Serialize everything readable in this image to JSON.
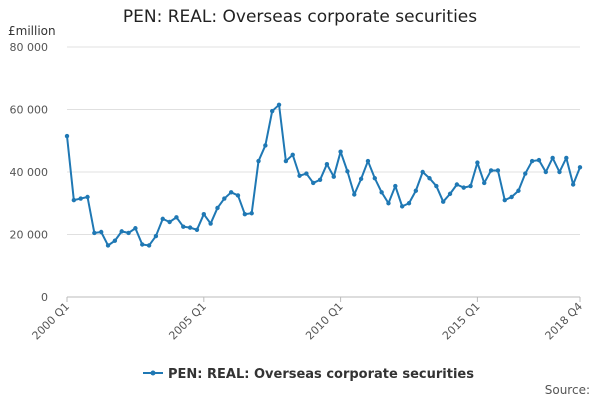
{
  "chart_data": {
    "type": "line",
    "title": "PEN: REAL: Overseas corporate securities",
    "ylabel": "£million",
    "xlabel": "",
    "ylim": [
      0,
      80000
    ],
    "yticks": [
      0,
      20000,
      40000,
      60000,
      80000
    ],
    "ytick_labels": [
      "0",
      "20 000",
      "40 000",
      "60 000",
      "80 000"
    ],
    "x_tick_labels": [
      "2000 Q1",
      "2005 Q1",
      "2010 Q1",
      "2015 Q1",
      "2018 Q4"
    ],
    "x_tick_indices": [
      0,
      20,
      40,
      60,
      75
    ],
    "grid": true,
    "legend_position": "bottom",
    "source_label": "Source:",
    "series": [
      {
        "name": "PEN: REAL: Overseas corporate securities",
        "color": "#1f78b4",
        "values": [
          51500,
          31000,
          31500,
          32000,
          20500,
          20800,
          16500,
          18000,
          21000,
          20500,
          22000,
          16800,
          16500,
          19500,
          25000,
          24000,
          25500,
          22500,
          22200,
          21500,
          26500,
          23500,
          28500,
          31500,
          33500,
          32500,
          26500,
          26800,
          43500,
          48500,
          59500,
          61500,
          43500,
          45500,
          38800,
          39500,
          36500,
          37500,
          42500,
          38500,
          46500,
          40200,
          32800,
          37800,
          43500,
          38000,
          33500,
          30000,
          35500,
          29000,
          30000,
          34000,
          40000,
          38000,
          35500,
          30500,
          33000,
          36000,
          35000,
          35500,
          43000,
          36500,
          40500,
          40500,
          31000,
          32000,
          34000,
          39500,
          43500,
          43800,
          40000,
          44500,
          40000,
          44500,
          36000,
          41500
        ]
      }
    ]
  }
}
